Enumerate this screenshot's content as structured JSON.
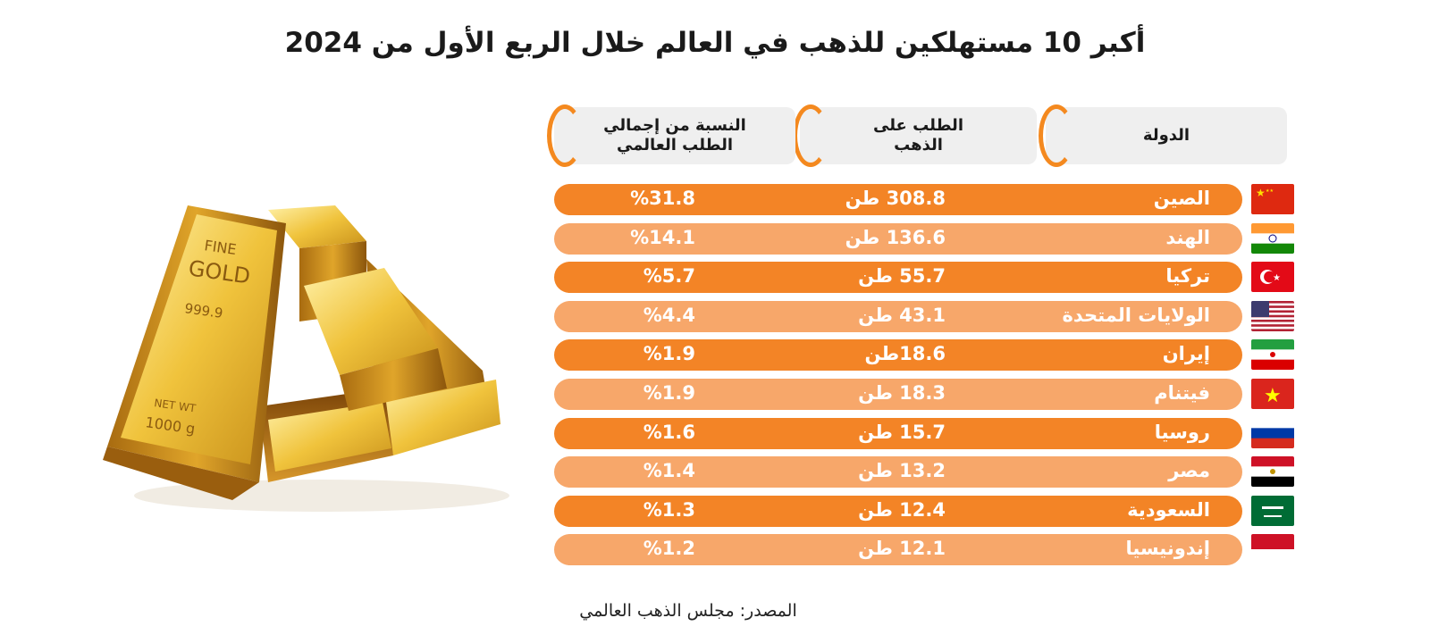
{
  "chart_data": {
    "type": "table",
    "title": "أكبر 10 مستهلكين للذهب في العالم خلال الربع الأول من 2024",
    "columns": [
      "الدولة",
      "الطلب على الذهب",
      "النسبة من إجمالي الطلب العالمي"
    ],
    "column_headers": {
      "country": "الدولة",
      "demand_line1": "الطلب على",
      "demand_line2": "الذهب",
      "share_line1": "النسبة من إجمالي",
      "share_line2": "الطلب العالمي"
    },
    "rows": [
      {
        "country": "الصين",
        "demand_label": "308.8 طن",
        "share_label": "%31.8",
        "demand_tonnes": 308.8,
        "share_percent": 31.8,
        "flag": "china-flag"
      },
      {
        "country": "الهند",
        "demand_label": "136.6 طن",
        "share_label": "%14.1",
        "demand_tonnes": 136.6,
        "share_percent": 14.1,
        "flag": "india-flag"
      },
      {
        "country": "تركيا",
        "demand_label": "55.7 طن",
        "share_label": "%5.7",
        "demand_tonnes": 55.7,
        "share_percent": 5.7,
        "flag": "turkey-flag"
      },
      {
        "country": "الولايات المتحدة",
        "demand_label": "43.1 طن",
        "share_label": "%4.4",
        "demand_tonnes": 43.1,
        "share_percent": 4.4,
        "flag": "usa-flag"
      },
      {
        "country": "إيران",
        "demand_label": "18.6طن",
        "share_label": "%1.9",
        "demand_tonnes": 18.6,
        "share_percent": 1.9,
        "flag": "iran-flag"
      },
      {
        "country": "فيتنام",
        "demand_label": "18.3 طن",
        "share_label": "%1.9",
        "demand_tonnes": 18.3,
        "share_percent": 1.9,
        "flag": "vietnam-flag"
      },
      {
        "country": "روسيا",
        "demand_label": "15.7 طن",
        "share_label": "%1.6",
        "demand_tonnes": 15.7,
        "share_percent": 1.6,
        "flag": "russia-flag"
      },
      {
        "country": "مصر",
        "demand_label": "13.2 طن",
        "share_label": "%1.4",
        "demand_tonnes": 13.2,
        "share_percent": 1.4,
        "flag": "egypt-flag"
      },
      {
        "country": "السعودية",
        "demand_label": "12.4 طن",
        "share_label": "%1.3",
        "demand_tonnes": 12.4,
        "share_percent": 1.3,
        "flag": "saudi-flag"
      },
      {
        "country": "إندونيسيا",
        "demand_label": "12.1 طن",
        "share_label": "%1.2",
        "demand_tonnes": 12.1,
        "share_percent": 1.2,
        "flag": "indonesia-flag"
      }
    ]
  },
  "source": "المصدر: مجلس الذهب العالمي",
  "illustration": {
    "icon": "gold-bars-icon",
    "bar_texts": [
      "FINE",
      "GOLD",
      "999.9",
      "NET WT",
      "1000 g"
    ]
  },
  "colors": {
    "row_dark": "#f38426",
    "row_light": "#f7a76a",
    "header_bg": "#efefef",
    "accent_orange": "#f4891f",
    "gold": "#d9a521"
  }
}
